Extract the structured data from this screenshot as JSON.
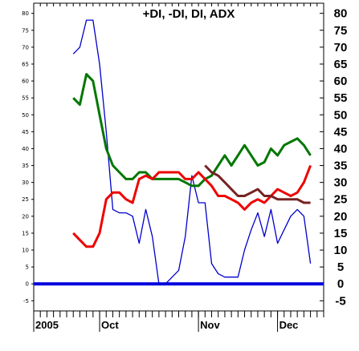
{
  "chart_data": {
    "type": "line",
    "title": "+DI, -DI, DI, ADX",
    "y_ticks": [
      80,
      75,
      70,
      65,
      60,
      55,
      50,
      45,
      40,
      35,
      30,
      25,
      20,
      15,
      10,
      5,
      0,
      -5
    ],
    "ylim": [
      -8,
      83
    ],
    "x_tick_labels": [
      "2005",
      "Oct",
      "Nov",
      "Dec"
    ],
    "x_tick_positions": [
      0,
      10,
      25,
      37
    ],
    "x_range": [
      0,
      44
    ],
    "zero_line": 0,
    "series": [
      {
        "color": "#0000cc",
        "x": [
          6,
          7,
          8,
          9,
          10,
          11,
          12,
          13,
          14,
          15,
          16,
          17,
          18,
          19,
          20,
          21,
          22,
          23,
          24,
          25,
          26,
          27,
          28,
          29,
          30,
          31,
          32,
          33,
          34,
          35,
          36,
          37,
          38,
          39,
          40,
          41,
          42
        ],
        "y": [
          68,
          70,
          78,
          78,
          65,
          45,
          22,
          21,
          21,
          20,
          12,
          22,
          14,
          0,
          0,
          2,
          4,
          14,
          32,
          24,
          24,
          6,
          3,
          2,
          2,
          2,
          10,
          16,
          21,
          14,
          22,
          12,
          16,
          20,
          22,
          20,
          6
        ]
      },
      {
        "color": "#007700",
        "x": [
          6,
          7,
          8,
          9,
          10,
          11,
          12,
          13,
          14,
          15,
          16,
          17,
          18,
          19,
          20,
          21,
          22,
          23,
          24,
          25,
          26,
          27,
          28,
          29,
          30,
          31,
          32,
          33,
          34,
          35,
          36,
          37,
          38,
          39,
          40,
          41,
          42
        ],
        "y": [
          55,
          53,
          62,
          60,
          50,
          40,
          35,
          33,
          31,
          31,
          33,
          33,
          31,
          31,
          31,
          31,
          31,
          30,
          29,
          29,
          31,
          32,
          35,
          38,
          35,
          38,
          41,
          38,
          35,
          36,
          40,
          38,
          41,
          42,
          43,
          41,
          38
        ]
      },
      {
        "color": "#ee0000",
        "x": [
          6,
          7,
          8,
          9,
          10,
          11,
          12,
          13,
          14,
          15,
          16,
          17,
          18,
          19,
          20,
          21,
          22,
          23,
          24,
          25,
          26,
          27,
          28,
          29,
          30,
          31,
          32,
          33,
          34,
          35,
          36,
          37,
          38,
          39,
          40,
          41,
          42
        ],
        "y": [
          15,
          13,
          11,
          11,
          15,
          25,
          27,
          27,
          25,
          24,
          31,
          32,
          31,
          33,
          33,
          33,
          33,
          31,
          31,
          33,
          31,
          29,
          26,
          26,
          25,
          24,
          22,
          24,
          25,
          24,
          26,
          28,
          27,
          26,
          27,
          30,
          35
        ]
      },
      {
        "color": "#772222",
        "x": [
          26,
          27,
          28,
          29,
          30,
          31,
          32,
          33,
          34,
          35,
          36,
          37,
          38,
          39,
          40,
          41,
          42
        ],
        "y": [
          35,
          33,
          32,
          30,
          28,
          26,
          26,
          27,
          28,
          26,
          26,
          25,
          25,
          25,
          25,
          24,
          24
        ]
      }
    ]
  }
}
